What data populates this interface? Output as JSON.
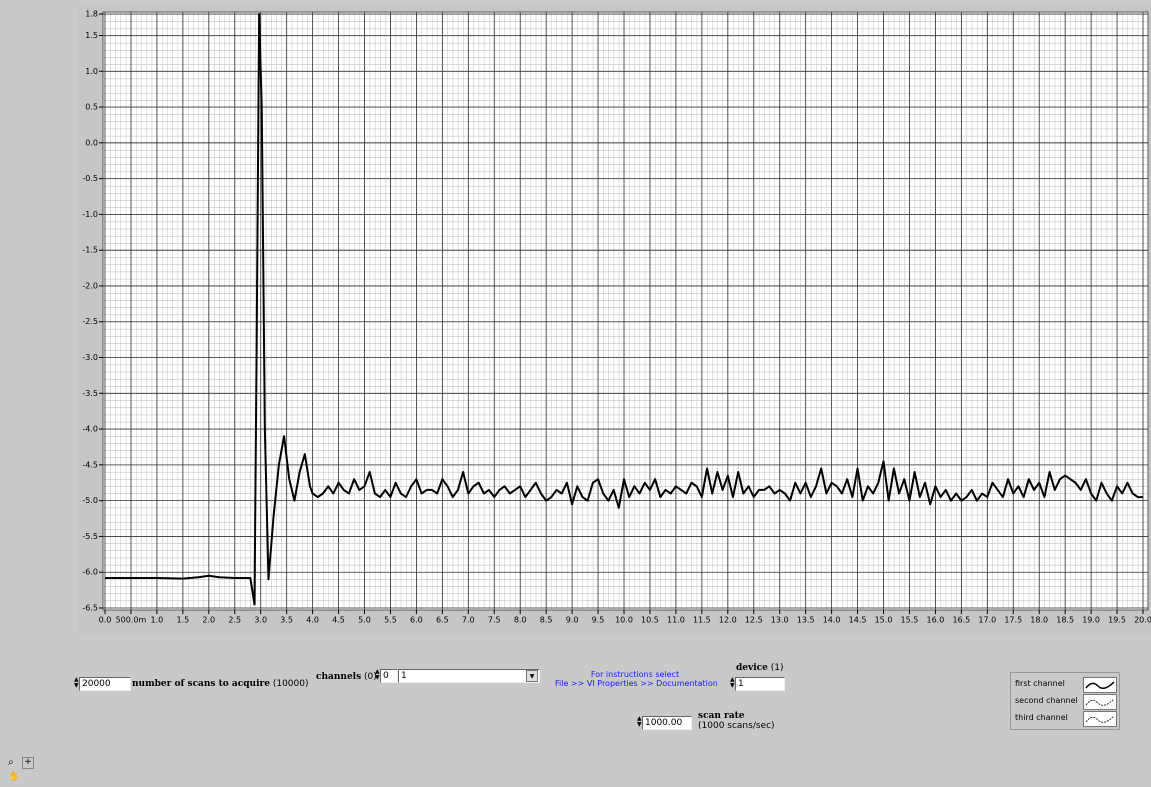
{
  "chart_data": {
    "type": "line",
    "xlim": [
      0,
      20
    ],
    "ylim": [
      -6.5,
      1.8
    ],
    "xticks": [
      {
        "value": 0,
        "label": "0.0"
      },
      {
        "value": 0.5,
        "label": "500.0m"
      },
      {
        "value": 1,
        "label": "1.0"
      },
      1.5,
      {
        "value": 2,
        "label": "2.0"
      },
      2.5,
      {
        "value": 3,
        "label": "3.0"
      },
      3.5,
      {
        "value": 4,
        "label": "4.0"
      },
      4.5,
      {
        "value": 5,
        "label": "5.0"
      },
      5.5,
      {
        "value": 6,
        "label": "6.0"
      },
      6.5,
      {
        "value": 7,
        "label": "7.0"
      },
      7.5,
      {
        "value": 8,
        "label": "8.0"
      },
      8.5,
      {
        "value": 9,
        "label": "9.0"
      },
      9.5,
      {
        "value": 10,
        "label": "10.0"
      },
      10.5,
      {
        "value": 11,
        "label": "11.0"
      },
      11.5,
      {
        "value": 12,
        "label": "12.0"
      },
      12.5,
      {
        "value": 13,
        "label": "13.0"
      },
      13.5,
      {
        "value": 14,
        "label": "14.0"
      },
      14.5,
      {
        "value": 15,
        "label": "15.0"
      },
      15.5,
      {
        "value": 16,
        "label": "16.0"
      },
      16.5,
      {
        "value": 17,
        "label": "17.0"
      },
      17.5,
      {
        "value": 18,
        "label": "18.0"
      },
      18.5,
      {
        "value": 19,
        "label": "19.0"
      },
      19.5,
      {
        "value": 20,
        "label": "20.0"
      }
    ],
    "yticks": [
      1.8,
      1.5,
      {
        "value": 1,
        "label": "1.0"
      },
      0.5,
      {
        "value": 0,
        "label": "0.0"
      },
      -0.5,
      {
        "value": -1,
        "label": "-1.0"
      },
      -1.5,
      {
        "value": -2,
        "label": "-2.0"
      },
      -2.5,
      {
        "value": -3,
        "label": "-3.0"
      },
      -3.5,
      {
        "value": -4,
        "label": "-4.0"
      },
      -4.5,
      {
        "value": -5,
        "label": "-5.0"
      },
      -5.5,
      {
        "value": -6,
        "label": "-6.0"
      },
      -6.5
    ],
    "grid": true,
    "series": [
      {
        "name": "first channel",
        "color": "#000000",
        "x": [
          0,
          0.5,
          1.0,
          1.5,
          1.8,
          2.0,
          2.2,
          2.5,
          2.8,
          2.88,
          2.92,
          2.97,
          3.02,
          3.08,
          3.15,
          3.25,
          3.35,
          3.45,
          3.55,
          3.65,
          3.75,
          3.85,
          3.95,
          4.0,
          4.1,
          4.2,
          4.3,
          4.4,
          4.5,
          4.6,
          4.7,
          4.8,
          4.9,
          5.0,
          5.1,
          5.2,
          5.3,
          5.4,
          5.5,
          5.6,
          5.7,
          5.8,
          5.9,
          6.0,
          6.1,
          6.2,
          6.3,
          6.4,
          6.5,
          6.6,
          6.7,
          6.8,
          6.9,
          7.0,
          7.1,
          7.2,
          7.3,
          7.4,
          7.5,
          7.6,
          7.7,
          7.8,
          7.9,
          8.0,
          8.1,
          8.2,
          8.3,
          8.4,
          8.5,
          8.6,
          8.7,
          8.8,
          8.9,
          9.0,
          9.1,
          9.2,
          9.3,
          9.4,
          9.5,
          9.6,
          9.7,
          9.8,
          9.9,
          10.0,
          10.1,
          10.2,
          10.3,
          10.4,
          10.5,
          10.6,
          10.7,
          10.8,
          10.9,
          11.0,
          11.1,
          11.2,
          11.3,
          11.4,
          11.5,
          11.6,
          11.7,
          11.8,
          11.9,
          12.0,
          12.1,
          12.2,
          12.3,
          12.4,
          12.5,
          12.6,
          12.7,
          12.8,
          12.9,
          13.0,
          13.1,
          13.2,
          13.3,
          13.4,
          13.5,
          13.6,
          13.7,
          13.8,
          13.9,
          14.0,
          14.1,
          14.2,
          14.3,
          14.4,
          14.5,
          14.6,
          14.7,
          14.8,
          14.9,
          15.0,
          15.1,
          15.2,
          15.3,
          15.4,
          15.5,
          15.6,
          15.7,
          15.8,
          15.9,
          16.0,
          16.1,
          16.2,
          16.3,
          16.4,
          16.5,
          16.6,
          16.7,
          16.8,
          16.9,
          17.0,
          17.1,
          17.2,
          17.3,
          17.4,
          17.5,
          17.6,
          17.7,
          17.8,
          17.9,
          18.0,
          18.1,
          18.2,
          18.3,
          18.4,
          18.5,
          18.6,
          18.7,
          18.8,
          18.9,
          19.0,
          19.1,
          19.2,
          19.3,
          19.4,
          19.5,
          19.6,
          19.7,
          19.8,
          19.9,
          20.0
        ],
        "values": [
          -6.08,
          -6.08,
          -6.08,
          -6.09,
          -6.07,
          -6.05,
          -6.07,
          -6.08,
          -6.08,
          -6.45,
          -3.0,
          1.8,
          0.5,
          -4.0,
          -6.1,
          -5.2,
          -4.5,
          -4.1,
          -4.7,
          -5.0,
          -4.6,
          -4.35,
          -4.8,
          -4.9,
          -4.95,
          -4.9,
          -4.8,
          -4.9,
          -4.75,
          -4.85,
          -4.9,
          -4.7,
          -4.85,
          -4.8,
          -4.6,
          -4.9,
          -4.95,
          -4.85,
          -4.95,
          -4.75,
          -4.9,
          -4.95,
          -4.8,
          -4.7,
          -4.9,
          -4.85,
          -4.85,
          -4.9,
          -4.7,
          -4.8,
          -4.95,
          -4.85,
          -4.6,
          -4.9,
          -4.8,
          -4.75,
          -4.9,
          -4.85,
          -4.95,
          -4.85,
          -4.8,
          -4.9,
          -4.85,
          -4.8,
          -4.95,
          -4.85,
          -4.75,
          -4.9,
          -5.0,
          -4.95,
          -4.85,
          -4.9,
          -4.75,
          -5.05,
          -4.8,
          -4.95,
          -5.0,
          -4.75,
          -4.7,
          -4.9,
          -5.0,
          -4.85,
          -5.1,
          -4.7,
          -4.95,
          -4.8,
          -4.9,
          -4.75,
          -4.85,
          -4.7,
          -4.95,
          -4.85,
          -4.9,
          -4.8,
          -4.85,
          -4.9,
          -4.75,
          -4.8,
          -4.95,
          -4.55,
          -4.9,
          -4.6,
          -4.85,
          -4.65,
          -4.95,
          -4.6,
          -4.9,
          -4.8,
          -4.95,
          -4.85,
          -4.85,
          -4.8,
          -4.9,
          -4.85,
          -4.9,
          -5.0,
          -4.75,
          -4.9,
          -4.75,
          -4.95,
          -4.8,
          -4.55,
          -4.9,
          -4.75,
          -4.8,
          -4.9,
          -4.7,
          -4.95,
          -4.55,
          -5.0,
          -4.8,
          -4.9,
          -4.75,
          -4.45,
          -5.0,
          -4.55,
          -4.9,
          -4.7,
          -5.0,
          -4.6,
          -4.95,
          -4.75,
          -5.05,
          -4.8,
          -4.95,
          -4.85,
          -5.0,
          -4.9,
          -5.0,
          -4.95,
          -4.85,
          -5.0,
          -4.9,
          -4.95,
          -4.75,
          -4.85,
          -4.95,
          -4.7,
          -4.9,
          -4.8,
          -4.95,
          -4.7,
          -4.85,
          -4.75,
          -4.95,
          -4.6,
          -4.85,
          -4.7,
          -4.65,
          -4.7,
          -4.75,
          -4.85,
          -4.7,
          -4.9,
          -5.0,
          -4.75,
          -4.9,
          -5.0,
          -4.8,
          -4.9,
          -4.75,
          -4.9,
          -4.95,
          -4.95
        ]
      },
      {
        "name": "second channel",
        "color": "#000000"
      },
      {
        "name": "third channel",
        "color": "#000000"
      }
    ]
  },
  "controls": {
    "scans": {
      "value": "20000",
      "label": "number of scans to acquire",
      "default": "(10000)"
    },
    "channels": {
      "label": "channels",
      "default": "(0)",
      "index": "0",
      "value": "1"
    },
    "instructions": [
      "For instructions select",
      "File >> VI Properties >> Documentation"
    ],
    "device": {
      "label": "device",
      "default": "(1)",
      "value": "1"
    },
    "scan_rate": {
      "value": "1000.00",
      "label": "scan rate",
      "default": "(1000 scans/sec)"
    }
  }
}
